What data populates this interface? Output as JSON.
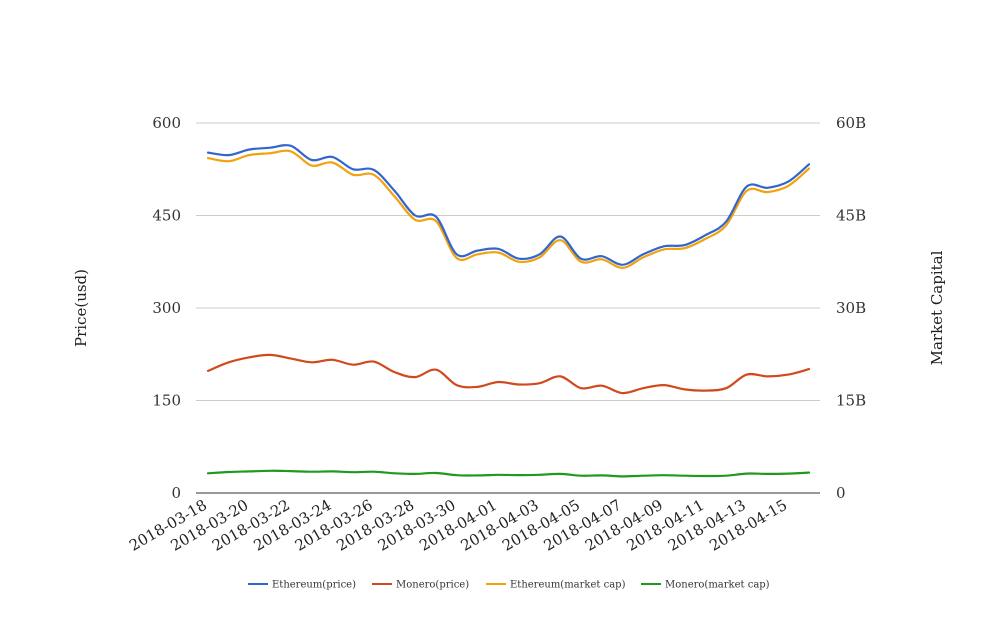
{
  "chart_data": {
    "type": "line",
    "x": [
      "2018-03-18",
      "2018-03-19",
      "2018-03-20",
      "2018-03-21",
      "2018-03-22",
      "2018-03-23",
      "2018-03-24",
      "2018-03-25",
      "2018-03-26",
      "2018-03-27",
      "2018-03-28",
      "2018-03-29",
      "2018-03-30",
      "2018-03-31",
      "2018-04-01",
      "2018-04-02",
      "2018-04-03",
      "2018-04-04",
      "2018-04-05",
      "2018-04-06",
      "2018-04-07",
      "2018-04-08",
      "2018-04-09",
      "2018-04-10",
      "2018-04-11",
      "2018-04-12",
      "2018-04-13",
      "2018-04-14",
      "2018-04-15",
      "2018-04-16"
    ],
    "xticks": [
      "2018-03-18",
      "2018-03-20",
      "2018-03-22",
      "2018-03-24",
      "2018-03-26",
      "2018-03-28",
      "2018-03-30",
      "2018-04-01",
      "2018-04-03",
      "2018-04-05",
      "2018-04-07",
      "2018-04-09",
      "2018-04-11",
      "2018-04-13",
      "2018-04-15"
    ],
    "ylabel": "Price(usd)",
    "ylabel_right": "Market Capital",
    "ylim": [
      0,
      600
    ],
    "ylim_right": [
      0,
      60000000000
    ],
    "yticks": [
      "0",
      "150",
      "300",
      "450",
      "600"
    ],
    "yticks_right": [
      "0",
      "15B",
      "30B",
      "45B",
      "60B"
    ],
    "grid": true,
    "legend_position": "bottom",
    "series": [
      {
        "name": "Ethereum(price)",
        "axis": "left",
        "color": "#3366cc",
        "values": [
          552,
          548,
          557,
          560,
          563,
          540,
          545,
          525,
          524,
          490,
          450,
          448,
          387,
          393,
          396,
          380,
          387,
          416,
          380,
          384,
          370,
          387,
          400,
          402,
          418,
          440,
          497,
          495,
          505,
          533
        ]
      },
      {
        "name": "Monero(price)",
        "axis": "left",
        "color": "#d04a1e",
        "values": [
          198,
          212,
          220,
          224,
          218,
          212,
          216,
          208,
          213,
          196,
          188,
          200,
          175,
          172,
          180,
          176,
          178,
          189,
          170,
          174,
          162,
          170,
          175,
          168,
          166,
          170,
          192,
          189,
          192,
          201
        ]
      },
      {
        "name": "Ethereum(market cap)",
        "axis": "right",
        "color": "#f2a20d",
        "values": [
          54300000000,
          53800000000,
          54800000000,
          55100000000,
          55400000000,
          53100000000,
          53600000000,
          51600000000,
          51600000000,
          48100000000,
          44300000000,
          44100000000,
          38100000000,
          38700000000,
          39000000000,
          37500000000,
          38200000000,
          41000000000,
          37500000000,
          37900000000,
          36500000000,
          38200000000,
          39500000000,
          39700000000,
          41200000000,
          43400000000,
          49000000000,
          48800000000,
          49800000000,
          52600000000
        ]
      },
      {
        "name": "Monero(market cap)",
        "axis": "right",
        "color": "#1f9a1f",
        "values": [
          3200000000,
          3400000000,
          3500000000,
          3600000000,
          3550000000,
          3450000000,
          3500000000,
          3380000000,
          3450000000,
          3200000000,
          3100000000,
          3250000000,
          2880000000,
          2850000000,
          2950000000,
          2900000000,
          2950000000,
          3100000000,
          2800000000,
          2850000000,
          2700000000,
          2800000000,
          2880000000,
          2800000000,
          2750000000,
          2800000000,
          3150000000,
          3100000000,
          3150000000,
          3300000000
        ]
      }
    ]
  }
}
